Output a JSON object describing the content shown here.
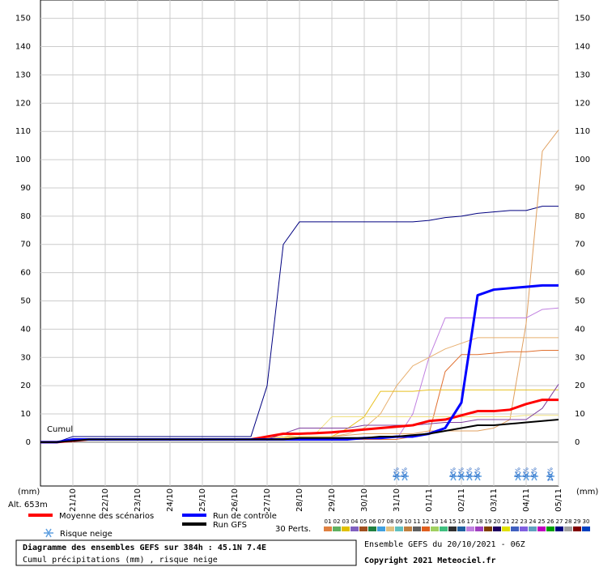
{
  "chart_data": {
    "type": "line",
    "annotations": {
      "left_unit": "(mm)",
      "right_unit": "(mm)",
      "altitude": "Alt. 653m",
      "cumul": "Cumul"
    },
    "x": [
      0,
      12,
      24,
      36,
      48,
      60,
      72,
      84,
      96,
      108,
      120,
      132,
      144,
      156,
      168,
      180,
      192,
      204,
      216,
      228,
      240,
      252,
      264,
      276,
      288,
      300,
      312,
      324,
      336,
      348,
      360,
      372,
      384
    ],
    "xlim": [
      0,
      384
    ],
    "xticks": [
      {
        "value": 24,
        "label": "21/10"
      },
      {
        "value": 48,
        "label": "22/10"
      },
      {
        "value": 72,
        "label": "23/10"
      },
      {
        "value": 96,
        "label": "24/10"
      },
      {
        "value": 120,
        "label": "25/10"
      },
      {
        "value": 144,
        "label": "26/10"
      },
      {
        "value": 168,
        "label": "27/10"
      },
      {
        "value": 192,
        "label": "28/10"
      },
      {
        "value": 216,
        "label": "29/10"
      },
      {
        "value": 240,
        "label": "30/10"
      },
      {
        "value": 264,
        "label": "31/10"
      },
      {
        "value": 288,
        "label": "01/11"
      },
      {
        "value": 312,
        "label": "02/11"
      },
      {
        "value": 336,
        "label": "03/11"
      },
      {
        "value": 360,
        "label": "04/11"
      },
      {
        "value": 384,
        "label": "05/11"
      }
    ],
    "ylim": [
      -15.5,
      156.5
    ],
    "yticks": [
      0,
      10,
      20,
      30,
      40,
      50,
      60,
      70,
      80,
      90,
      100,
      110,
      120,
      130,
      140,
      150
    ],
    "grid": true,
    "series": [
      {
        "color": "#000080",
        "width": 1,
        "values": [
          0,
          0,
          2,
          2,
          2,
          2,
          2,
          2,
          2,
          2,
          2,
          2,
          2,
          2,
          20,
          70,
          78,
          78,
          78,
          78,
          78,
          78,
          78,
          78,
          78.5,
          79.5,
          80,
          81,
          81.5,
          82,
          82,
          83.5,
          83.5
        ]
      },
      {
        "color": "#e0a060",
        "width": 1,
        "values": [
          0,
          0,
          0.5,
          1,
          1,
          1,
          1,
          1,
          1,
          1,
          1,
          1,
          1,
          1,
          1.5,
          2,
          2,
          2,
          2,
          2.5,
          3,
          3,
          3,
          3,
          4,
          4,
          4,
          4,
          5,
          8,
          42,
          103,
          110.5
        ]
      },
      {
        "color": "#c080e0",
        "width": 1,
        "values": [
          0,
          0,
          0.5,
          1,
          1,
          1,
          1,
          1,
          1,
          1,
          1,
          1,
          1,
          1,
          1,
          1,
          1,
          1,
          1,
          1,
          1,
          1,
          1,
          10,
          30,
          44,
          44,
          44,
          44,
          44,
          44,
          47,
          47.5
        ]
      },
      {
        "color": "#e07030",
        "width": 1,
        "values": [
          0,
          0,
          0.5,
          1,
          1,
          1,
          1,
          1,
          1,
          1,
          1,
          1,
          1,
          1,
          1,
          1,
          1,
          1,
          1,
          1,
          1,
          1,
          1,
          2,
          3,
          25,
          31,
          31,
          31.5,
          32,
          32,
          32.5,
          32.5
        ]
      },
      {
        "color": "#e8b070",
        "width": 1,
        "values": [
          0,
          0,
          0.5,
          1,
          1,
          1,
          1,
          1,
          1,
          1,
          1,
          1,
          1,
          1,
          1,
          2,
          2,
          2,
          2,
          3,
          5,
          10,
          20,
          27,
          30,
          33,
          35,
          37,
          37,
          37,
          37,
          37,
          37
        ]
      },
      {
        "color": "#e8c020",
        "width": 1,
        "values": [
          0,
          0,
          0.5,
          1,
          1,
          1,
          1,
          1,
          1,
          1,
          1,
          1,
          1,
          1,
          1,
          1.5,
          2,
          2,
          2,
          5,
          9,
          18,
          18,
          18,
          18.5,
          18.5,
          18.5,
          18.5,
          18.5,
          18.5,
          18.5,
          18.5,
          18.5
        ]
      },
      {
        "color": "#f0e080",
        "width": 1,
        "values": [
          0,
          0,
          0.5,
          1,
          1,
          1,
          1,
          1,
          1,
          1,
          1,
          1,
          1,
          1,
          1,
          2,
          3,
          3,
          9,
          9,
          9,
          9,
          9,
          9,
          9,
          9,
          9,
          9,
          9,
          9,
          9.5,
          9.5,
          9.5
        ]
      },
      {
        "color": "#8040a0",
        "width": 1,
        "values": [
          0,
          0,
          0.5,
          1,
          1,
          1,
          1,
          1,
          1,
          1,
          1,
          1,
          1,
          1,
          1,
          3,
          5,
          5,
          5,
          5,
          6,
          6,
          6,
          6,
          6.5,
          7,
          7,
          8,
          8,
          8,
          8,
          12,
          20.5
        ]
      },
      {
        "name": "Moyenne des scénarios",
        "color": "#ff0000",
        "width": 3,
        "values": [
          0,
          0,
          0.5,
          1,
          1,
          1,
          1,
          1,
          1,
          1,
          1,
          1,
          1,
          1,
          2,
          3,
          3,
          3.2,
          3.5,
          4,
          4.5,
          5,
          5.5,
          6,
          7.5,
          8,
          9.5,
          11,
          11,
          11.5,
          13.5,
          15,
          15
        ]
      },
      {
        "name": "Run de contrôle",
        "color": "#0000ff",
        "width": 3,
        "values": [
          0,
          0,
          1,
          1,
          1,
          1,
          1,
          1,
          1,
          1,
          1,
          1,
          1,
          1,
          1,
          1,
          1,
          1,
          1,
          1,
          1.5,
          1.5,
          2,
          2,
          3,
          5,
          14,
          52,
          54,
          54.5,
          55,
          55.5,
          55.5
        ]
      },
      {
        "name": "Run GFS",
        "color": "#000000",
        "width": 2,
        "values": [
          0,
          0,
          0.5,
          1,
          1,
          1,
          1,
          1,
          1,
          1,
          1,
          1,
          1,
          1,
          1,
          1,
          1.5,
          1.5,
          1.5,
          1.5,
          1.5,
          2,
          2,
          2.5,
          3,
          4,
          5,
          6,
          6,
          6.5,
          7,
          7.5,
          8
        ]
      }
    ],
    "snow_legend": "Risque neige",
    "snow_risk": {
      "x": [
        264,
        270,
        306,
        312,
        318,
        324,
        354,
        360,
        366,
        378
      ],
      "values": [
        5,
        5,
        5,
        5,
        5,
        5,
        5,
        5,
        5,
        10
      ],
      "value_labels": [
        "5%",
        "5%",
        "5%",
        "5%",
        "5%",
        "5%",
        "5%",
        "5%",
        "5%",
        "10%"
      ]
    },
    "perturbations": {
      "label": "30 Perts.",
      "items": [
        {
          "label": "01",
          "color": "#e08040"
        },
        {
          "label": "02",
          "color": "#60b060"
        },
        {
          "label": "03",
          "color": "#e0c000"
        },
        {
          "label": "04",
          "color": "#8060c0"
        },
        {
          "label": "05",
          "color": "#a05020"
        },
        {
          "label": "06",
          "color": "#208040"
        },
        {
          "label": "07",
          "color": "#40a0e0"
        },
        {
          "label": "08",
          "color": "#e0c080"
        },
        {
          "label": "09",
          "color": "#60c0c0"
        },
        {
          "label": "10",
          "color": "#c08040"
        },
        {
          "label": "11",
          "color": "#606060"
        },
        {
          "label": "12",
          "color": "#e06020"
        },
        {
          "label": "13",
          "color": "#a0d060"
        },
        {
          "label": "14",
          "color": "#40c080"
        },
        {
          "label": "15",
          "color": "#303030"
        },
        {
          "label": "16",
          "color": "#2060a0"
        },
        {
          "label": "17",
          "color": "#c080e0"
        },
        {
          "label": "18",
          "color": "#a040c0"
        },
        {
          "label": "19",
          "color": "#804000"
        },
        {
          "label": "20",
          "color": "#200060"
        },
        {
          "label": "21",
          "color": "#e0e000"
        },
        {
          "label": "22",
          "color": "#4060c0"
        },
        {
          "label": "23",
          "color": "#8060e0"
        },
        {
          "label": "24",
          "color": "#60a0c0"
        },
        {
          "label": "25",
          "color": "#c000c0"
        },
        {
          "label": "26",
          "color": "#00a000"
        },
        {
          "label": "27",
          "color": "#000080"
        },
        {
          "label": "28",
          "color": "#a0a0a0"
        },
        {
          "label": "29",
          "color": "#800000"
        },
        {
          "label": "30",
          "color": "#0040c0"
        }
      ]
    },
    "footer": {
      "title": "Diagramme des ensembles GEFS sur 384h : 45.1N 7.4E",
      "subtitle": "Cumul précipitations (mm) , risque neige",
      "run": "Ensemble GEFS du 20/10/2021 - 06Z",
      "copyright": "Copyright 2021 Meteociel.fr"
    }
  }
}
